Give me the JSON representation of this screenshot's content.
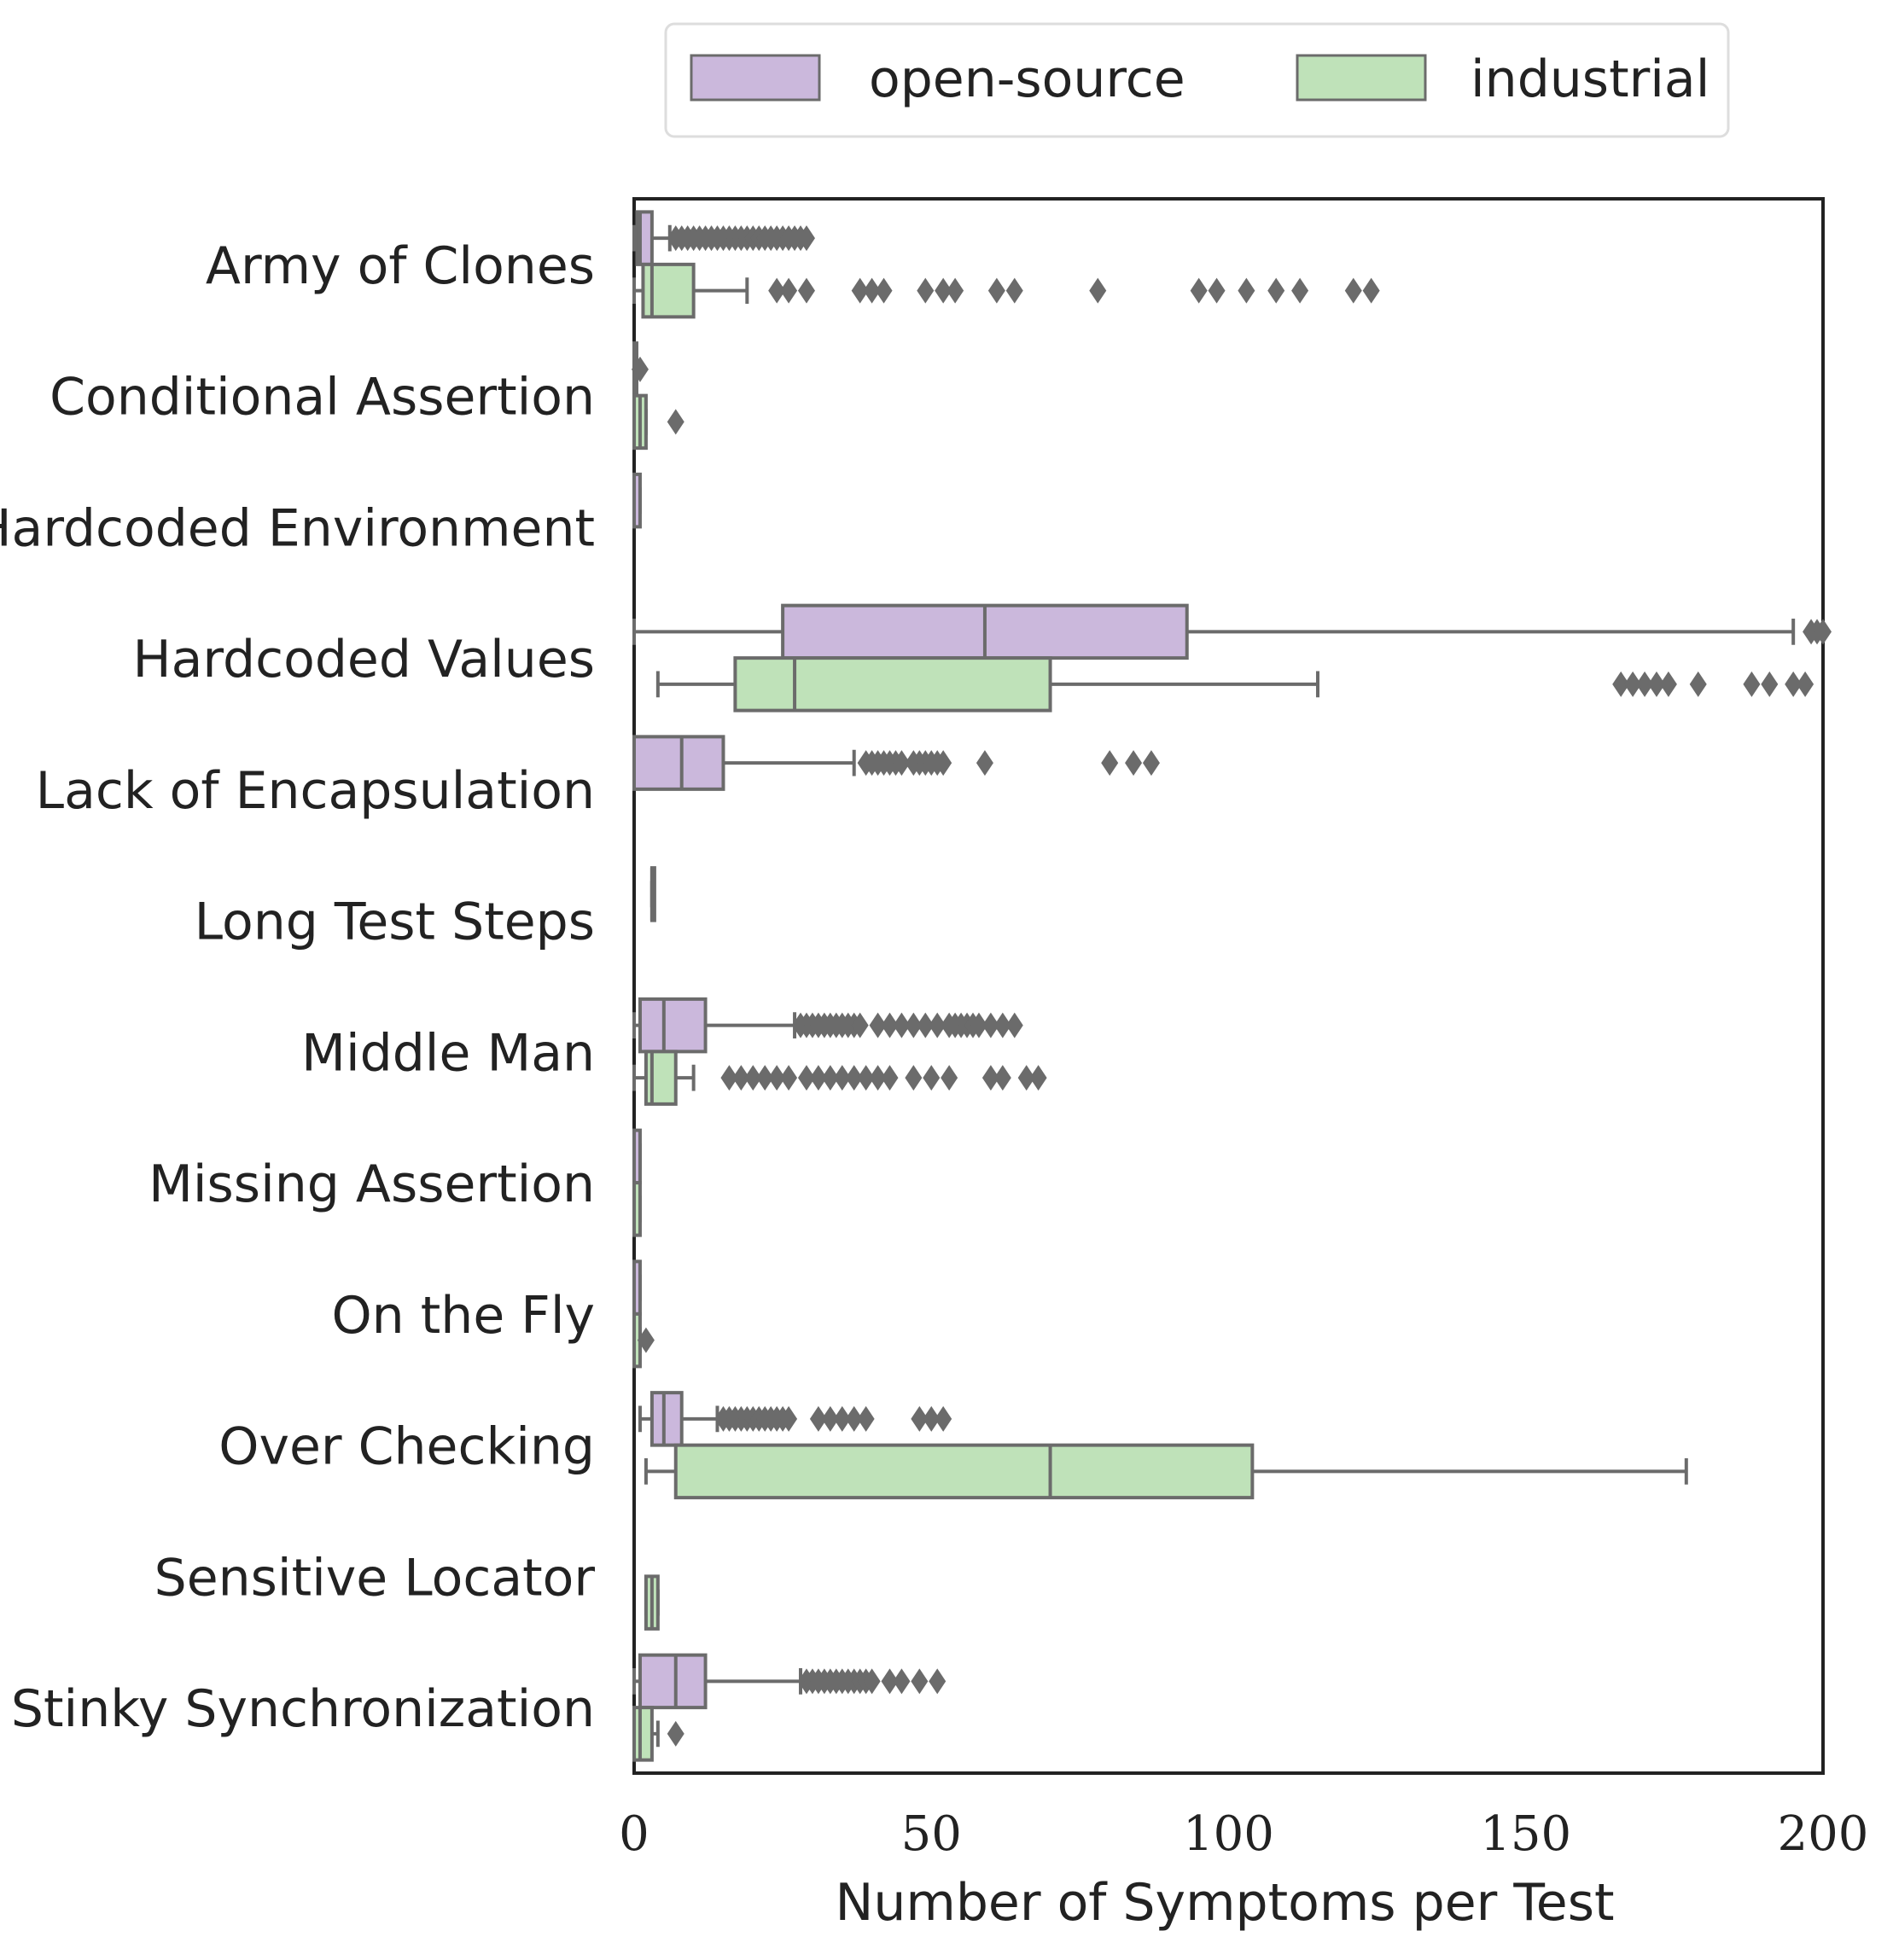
{
  "chart_data": {
    "type": "boxplot",
    "orientation": "horizontal",
    "xlabel": "Number of Symptoms per Test",
    "ylabel": "",
    "xlim": [
      0,
      200
    ],
    "xticks": [
      0,
      50,
      100,
      150,
      200
    ],
    "grid": false,
    "legend_position": "top",
    "series": [
      {
        "name": "open-source",
        "color": "#cbb8dc"
      },
      {
        "name": "industrial",
        "color": "#bfe2b9"
      }
    ],
    "edge_color": "#6b6b6b",
    "categories": [
      {
        "label": "Army of Clones",
        "open-source": {
          "whislo": 0,
          "q1": 0.5,
          "med": 1,
          "q3": 3,
          "whishi": 6,
          "fliers": [
            7,
            8,
            9,
            10,
            11,
            12,
            13,
            14,
            15,
            16,
            17,
            18,
            19,
            20,
            21,
            22,
            23,
            24,
            25,
            26,
            27,
            28,
            29
          ]
        },
        "industrial": {
          "whislo": 0,
          "q1": 1.5,
          "med": 3,
          "q3": 10,
          "whishi": 19,
          "fliers": [
            24,
            26,
            29,
            38,
            40,
            42,
            49,
            52,
            54,
            61,
            64,
            78,
            95,
            98,
            103,
            108,
            112,
            121,
            124
          ]
        }
      },
      {
        "label": "Conditional Assertion",
        "open-source": {
          "whislo": 0,
          "q1": 0,
          "med": 0,
          "q3": 0,
          "whishi": 0,
          "fliers": [
            1
          ]
        },
        "industrial": {
          "whislo": 0,
          "q1": 0,
          "med": 1,
          "q3": 2,
          "whishi": 2,
          "fliers": [
            7
          ]
        }
      },
      {
        "label": "Hardcoded Environment",
        "open-source": {
          "whislo": 0,
          "q1": 0,
          "med": 0,
          "q3": 1,
          "whishi": 1,
          "fliers": []
        },
        "industrial": null
      },
      {
        "label": "Hardcoded Values",
        "open-source": {
          "whislo": 0,
          "q1": 25,
          "med": 59,
          "q3": 93,
          "whishi": 195,
          "fliers": [
            198,
            199,
            200
          ]
        },
        "industrial": {
          "whislo": 4,
          "q1": 17,
          "med": 27,
          "q3": 70,
          "whishi": 115,
          "fliers": [
            166,
            168,
            170,
            172,
            174,
            179,
            188,
            191,
            195,
            197
          ]
        }
      },
      {
        "label": "Lack of Encapsulation",
        "open-source": {
          "whislo": 0,
          "q1": 0,
          "med": 8,
          "q3": 15,
          "whishi": 37,
          "fliers": [
            39,
            40,
            41,
            42,
            43,
            44,
            45,
            47,
            48,
            49,
            50,
            51,
            52,
            59,
            80,
            84,
            87
          ]
        },
        "industrial": null
      },
      {
        "label": "Long Test Steps",
        "open-source": {
          "whislo": 3,
          "q1": 3,
          "med": 3,
          "q3": 3,
          "whishi": 3,
          "fliers": []
        },
        "industrial": null
      },
      {
        "label": "Middle Man",
        "open-source": {
          "whislo": 0,
          "q1": 1,
          "med": 5,
          "q3": 12,
          "whishi": 27,
          "fliers": [
            28,
            29,
            30,
            31,
            32,
            33,
            34,
            35,
            36,
            37,
            38,
            41,
            43,
            45,
            47,
            49,
            51,
            53,
            54,
            55,
            56,
            57,
            58,
            60,
            62,
            64
          ]
        },
        "industrial": {
          "whislo": 0,
          "q1": 2,
          "med": 3,
          "q3": 7,
          "whishi": 10,
          "fliers": [
            16,
            18,
            20,
            22,
            24,
            26,
            29,
            31,
            33,
            35,
            37,
            39,
            41,
            43,
            47,
            50,
            53,
            60,
            62,
            66,
            68
          ]
        }
      },
      {
        "label": "Missing Assertion",
        "open-source": {
          "whislo": 0,
          "q1": 0,
          "med": 0,
          "q3": 1,
          "whishi": 1,
          "fliers": []
        },
        "industrial": {
          "whislo": 0,
          "q1": 0,
          "med": 0,
          "q3": 1,
          "whishi": 1,
          "fliers": []
        }
      },
      {
        "label": "On the Fly",
        "open-source": {
          "whislo": 0,
          "q1": 0,
          "med": 0,
          "q3": 1,
          "whishi": 1,
          "fliers": []
        },
        "industrial": {
          "whislo": 0,
          "q1": 0,
          "med": 0,
          "q3": 1,
          "whishi": 1,
          "fliers": [
            2
          ]
        }
      },
      {
        "label": "Over Checking",
        "open-source": {
          "whislo": 1,
          "q1": 3,
          "med": 5,
          "q3": 8,
          "whishi": 14,
          "fliers": [
            15,
            16,
            17,
            18,
            19,
            20,
            21,
            22,
            23,
            24,
            25,
            26,
            31,
            33,
            35,
            37,
            39,
            48,
            50,
            52
          ]
        },
        "industrial": {
          "whislo": 2,
          "q1": 7,
          "med": 70,
          "q3": 104,
          "whishi": 177,
          "fliers": []
        }
      },
      {
        "label": "Sensitive Locator",
        "open-source": null,
        "industrial": {
          "whislo": 2,
          "q1": 2,
          "med": 3,
          "q3": 4,
          "whishi": 4,
          "fliers": []
        }
      },
      {
        "label": "Stinky Synchronization",
        "open-source": {
          "whislo": 0,
          "q1": 1,
          "med": 7,
          "q3": 12,
          "whishi": 28,
          "fliers": [
            29,
            30,
            31,
            32,
            33,
            34,
            35,
            36,
            37,
            38,
            39,
            40,
            43,
            45,
            48,
            51
          ]
        },
        "industrial": {
          "whislo": 0,
          "q1": 0,
          "med": 1,
          "q3": 3,
          "whishi": 4,
          "fliers": [
            7
          ]
        }
      }
    ]
  }
}
